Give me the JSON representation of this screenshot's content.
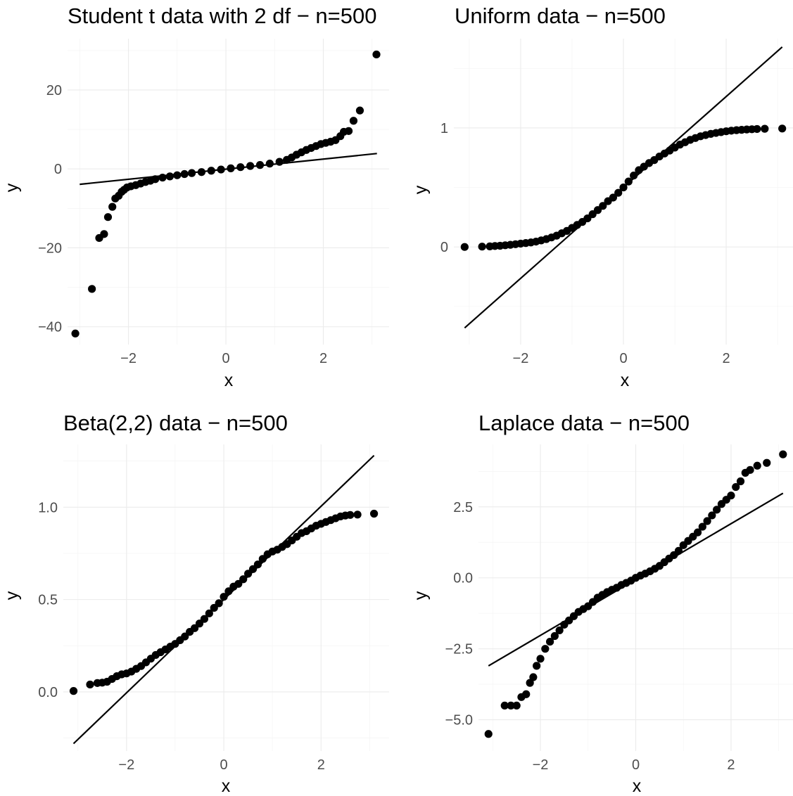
{
  "chart_data": [
    {
      "type": "scatter",
      "title": "Student t data with 2 df − n=500",
      "xlabel": "x",
      "ylabel": "y",
      "xlim": [
        -3.25,
        3.35
      ],
      "ylim": [
        -44.5,
        33
      ],
      "x_ticks": [
        {
          "v": -2,
          "label": "−2"
        },
        {
          "v": 0,
          "label": "0"
        },
        {
          "v": 2,
          "label": "2"
        }
      ],
      "y_ticks": [
        {
          "v": -40,
          "label": "−40"
        },
        {
          "v": -20,
          "label": "−20"
        },
        {
          "v": 0,
          "label": "0"
        },
        {
          "v": 20,
          "label": "20"
        }
      ],
      "reference_line": [
        [
          -3.0,
          -3.9
        ],
        [
          3.1,
          3.9
        ]
      ],
      "points": [
        [
          -3.09,
          -41.7
        ],
        [
          -2.75,
          -30.4
        ],
        [
          -2.6,
          -17.5
        ],
        [
          -2.5,
          -16.5
        ],
        [
          -2.42,
          -12.2
        ],
        [
          -2.33,
          -9.6
        ],
        [
          -2.27,
          -7.5
        ],
        [
          -2.2,
          -6.8
        ],
        [
          -2.14,
          -5.8
        ],
        [
          -2.09,
          -5.3
        ],
        [
          -2.03,
          -4.7
        ],
        [
          -1.95,
          -4.4
        ],
        [
          -1.85,
          -4.1
        ],
        [
          -1.75,
          -3.7
        ],
        [
          -1.65,
          -3.3
        ],
        [
          -1.55,
          -3.0
        ],
        [
          -1.45,
          -2.6
        ],
        [
          -1.3,
          -2.2
        ],
        [
          -1.15,
          -1.9
        ],
        [
          -1.0,
          -1.6
        ],
        [
          -0.85,
          -1.3
        ],
        [
          -0.7,
          -1.05
        ],
        [
          -0.5,
          -0.8
        ],
        [
          -0.3,
          -0.45
        ],
        [
          -0.1,
          -0.15
        ],
        [
          0.1,
          0.15
        ],
        [
          0.3,
          0.45
        ],
        [
          0.5,
          0.75
        ],
        [
          0.7,
          1.0
        ],
        [
          0.9,
          1.35
        ],
        [
          1.1,
          1.8
        ],
        [
          1.25,
          2.3
        ],
        [
          1.35,
          2.9
        ],
        [
          1.45,
          3.6
        ],
        [
          1.55,
          4.2
        ],
        [
          1.65,
          4.8
        ],
        [
          1.75,
          5.3
        ],
        [
          1.85,
          5.8
        ],
        [
          1.95,
          6.3
        ],
        [
          2.05,
          6.6
        ],
        [
          2.15,
          6.9
        ],
        [
          2.25,
          7.3
        ],
        [
          2.35,
          8.3
        ],
        [
          2.42,
          9.4
        ],
        [
          2.52,
          9.6
        ],
        [
          2.62,
          12.2
        ],
        [
          2.75,
          14.8
        ],
        [
          3.09,
          29.0
        ]
      ]
    },
    {
      "type": "scatter",
      "title": "Uniform data − n=500",
      "xlabel": "x",
      "ylabel": "y",
      "xlim": [
        -3.3,
        3.3
      ],
      "ylim": [
        -0.82,
        1.75
      ],
      "x_ticks": [
        {
          "v": -2,
          "label": "−2"
        },
        {
          "v": 0,
          "label": "0"
        },
        {
          "v": 2,
          "label": "2"
        }
      ],
      "y_ticks": [
        {
          "v": 0,
          "label": "0"
        },
        {
          "v": 1,
          "label": "1"
        }
      ],
      "reference_line": [
        [
          -3.09,
          -0.68
        ],
        [
          3.09,
          1.68
        ]
      ],
      "points": [
        [
          -3.09,
          0.0
        ],
        [
          -2.75,
          0.003
        ],
        [
          -2.6,
          0.005
        ],
        [
          -2.5,
          0.008
        ],
        [
          -2.4,
          0.01
        ],
        [
          -2.3,
          0.014
        ],
        [
          -2.2,
          0.018
        ],
        [
          -2.1,
          0.023
        ],
        [
          -2.0,
          0.028
        ],
        [
          -1.9,
          0.033
        ],
        [
          -1.8,
          0.038
        ],
        [
          -1.7,
          0.045
        ],
        [
          -1.6,
          0.055
        ],
        [
          -1.5,
          0.066
        ],
        [
          -1.4,
          0.08
        ],
        [
          -1.3,
          0.095
        ],
        [
          -1.2,
          0.115
        ],
        [
          -1.1,
          0.135
        ],
        [
          -1.0,
          0.16
        ],
        [
          -0.9,
          0.185
        ],
        [
          -0.8,
          0.21
        ],
        [
          -0.7,
          0.24
        ],
        [
          -0.6,
          0.275
        ],
        [
          -0.5,
          0.31
        ],
        [
          -0.4,
          0.345
        ],
        [
          -0.3,
          0.385
        ],
        [
          -0.2,
          0.415
        ],
        [
          -0.1,
          0.455
        ],
        [
          0.0,
          0.5
        ],
        [
          0.1,
          0.55
        ],
        [
          0.2,
          0.6
        ],
        [
          0.3,
          0.645
        ],
        [
          0.4,
          0.675
        ],
        [
          0.5,
          0.705
        ],
        [
          0.6,
          0.73
        ],
        [
          0.7,
          0.76
        ],
        [
          0.8,
          0.785
        ],
        [
          0.9,
          0.81
        ],
        [
          1.0,
          0.835
        ],
        [
          1.1,
          0.86
        ],
        [
          1.2,
          0.88
        ],
        [
          1.3,
          0.9
        ],
        [
          1.4,
          0.915
        ],
        [
          1.5,
          0.93
        ],
        [
          1.6,
          0.94
        ],
        [
          1.7,
          0.95
        ],
        [
          1.8,
          0.958
        ],
        [
          1.9,
          0.965
        ],
        [
          2.0,
          0.972
        ],
        [
          2.1,
          0.977
        ],
        [
          2.2,
          0.981
        ],
        [
          2.3,
          0.984
        ],
        [
          2.4,
          0.987
        ],
        [
          2.5,
          0.989
        ],
        [
          2.6,
          0.991
        ],
        [
          2.75,
          0.993
        ],
        [
          3.09,
          0.995
        ]
      ]
    },
    {
      "type": "scatter",
      "title": "Beta(2,2) data − n=500",
      "xlabel": "x",
      "ylabel": "y",
      "xlim": [
        -3.3,
        3.4
      ],
      "ylim": [
        -0.32,
        1.34
      ],
      "x_ticks": [
        {
          "v": -2,
          "label": "−2"
        },
        {
          "v": 0,
          "label": "0"
        },
        {
          "v": 2,
          "label": "2"
        }
      ],
      "y_ticks": [
        {
          "v": 0,
          "label": "0.0"
        },
        {
          "v": 0.5,
          "label": "0.5"
        },
        {
          "v": 1,
          "label": "1.0"
        }
      ],
      "reference_line": [
        [
          -3.09,
          -0.28
        ],
        [
          3.09,
          1.28
        ]
      ],
      "points": [
        [
          -3.09,
          0.005
        ],
        [
          -2.75,
          0.04
        ],
        [
          -2.6,
          0.048
        ],
        [
          -2.5,
          0.05
        ],
        [
          -2.4,
          0.055
        ],
        [
          -2.3,
          0.07
        ],
        [
          -2.2,
          0.085
        ],
        [
          -2.1,
          0.095
        ],
        [
          -2.0,
          0.1
        ],
        [
          -1.9,
          0.11
        ],
        [
          -1.8,
          0.125
        ],
        [
          -1.7,
          0.14
        ],
        [
          -1.6,
          0.16
        ],
        [
          -1.5,
          0.18
        ],
        [
          -1.4,
          0.2
        ],
        [
          -1.3,
          0.215
        ],
        [
          -1.2,
          0.23
        ],
        [
          -1.1,
          0.245
        ],
        [
          -1.0,
          0.26
        ],
        [
          -0.9,
          0.28
        ],
        [
          -0.8,
          0.3
        ],
        [
          -0.7,
          0.325
        ],
        [
          -0.6,
          0.345
        ],
        [
          -0.5,
          0.37
        ],
        [
          -0.4,
          0.395
        ],
        [
          -0.3,
          0.425
        ],
        [
          -0.2,
          0.455
        ],
        [
          -0.1,
          0.48
        ],
        [
          0.0,
          0.515
        ],
        [
          0.1,
          0.545
        ],
        [
          0.2,
          0.57
        ],
        [
          0.3,
          0.585
        ],
        [
          0.4,
          0.61
        ],
        [
          0.5,
          0.64
        ],
        [
          0.6,
          0.665
        ],
        [
          0.7,
          0.69
        ],
        [
          0.8,
          0.72
        ],
        [
          0.9,
          0.745
        ],
        [
          1.0,
          0.76
        ],
        [
          1.1,
          0.77
        ],
        [
          1.2,
          0.785
        ],
        [
          1.3,
          0.8
        ],
        [
          1.4,
          0.82
        ],
        [
          1.5,
          0.84
        ],
        [
          1.6,
          0.86
        ],
        [
          1.7,
          0.87
        ],
        [
          1.8,
          0.885
        ],
        [
          1.9,
          0.9
        ],
        [
          2.0,
          0.91
        ],
        [
          2.1,
          0.92
        ],
        [
          2.2,
          0.93
        ],
        [
          2.3,
          0.94
        ],
        [
          2.4,
          0.95
        ],
        [
          2.5,
          0.955
        ],
        [
          2.6,
          0.958
        ],
        [
          2.75,
          0.96
        ],
        [
          3.09,
          0.965
        ]
      ]
    },
    {
      "type": "scatter",
      "title": "Laplace data − n=500",
      "xlabel": "x",
      "ylabel": "y",
      "xlim": [
        -3.3,
        3.3
      ],
      "ylim": [
        -6.1,
        4.7
      ],
      "x_ticks": [
        {
          "v": -2,
          "label": "−2"
        },
        {
          "v": 0,
          "label": "0"
        },
        {
          "v": 2,
          "label": "2"
        }
      ],
      "y_ticks": [
        {
          "v": -5,
          "label": "−5.0"
        },
        {
          "v": -2.5,
          "label": "−2.5"
        },
        {
          "v": 0,
          "label": "0.0"
        },
        {
          "v": 2.5,
          "label": "2.5"
        }
      ],
      "reference_line": [
        [
          -3.09,
          -3.1
        ],
        [
          3.09,
          2.98
        ]
      ],
      "points": [
        [
          -3.09,
          -5.5
        ],
        [
          -2.75,
          -4.5
        ],
        [
          -2.62,
          -4.5
        ],
        [
          -2.5,
          -4.5
        ],
        [
          -2.4,
          -4.2
        ],
        [
          -2.3,
          -4.1
        ],
        [
          -2.22,
          -3.7
        ],
        [
          -2.15,
          -3.5
        ],
        [
          -2.08,
          -3.1
        ],
        [
          -2.0,
          -2.85
        ],
        [
          -1.9,
          -2.5
        ],
        [
          -1.8,
          -2.25
        ],
        [
          -1.7,
          -2.05
        ],
        [
          -1.6,
          -1.85
        ],
        [
          -1.5,
          -1.65
        ],
        [
          -1.4,
          -1.5
        ],
        [
          -1.3,
          -1.35
        ],
        [
          -1.2,
          -1.2
        ],
        [
          -1.1,
          -1.1
        ],
        [
          -1.0,
          -1.0
        ],
        [
          -0.9,
          -0.85
        ],
        [
          -0.8,
          -0.7
        ],
        [
          -0.7,
          -0.6
        ],
        [
          -0.6,
          -0.5
        ],
        [
          -0.5,
          -0.42
        ],
        [
          -0.4,
          -0.35
        ],
        [
          -0.3,
          -0.25
        ],
        [
          -0.2,
          -0.18
        ],
        [
          -0.1,
          -0.1
        ],
        [
          0.0,
          0.0
        ],
        [
          0.1,
          0.08
        ],
        [
          0.2,
          0.15
        ],
        [
          0.3,
          0.23
        ],
        [
          0.4,
          0.32
        ],
        [
          0.5,
          0.42
        ],
        [
          0.6,
          0.55
        ],
        [
          0.7,
          0.68
        ],
        [
          0.8,
          0.8
        ],
        [
          0.9,
          0.95
        ],
        [
          1.0,
          1.15
        ],
        [
          1.1,
          1.3
        ],
        [
          1.2,
          1.45
        ],
        [
          1.3,
          1.6
        ],
        [
          1.4,
          1.8
        ],
        [
          1.5,
          2.0
        ],
        [
          1.6,
          2.2
        ],
        [
          1.7,
          2.4
        ],
        [
          1.8,
          2.6
        ],
        [
          1.9,
          2.75
        ],
        [
          2.0,
          2.9
        ],
        [
          2.1,
          3.2
        ],
        [
          2.2,
          3.4
        ],
        [
          2.3,
          3.7
        ],
        [
          2.4,
          3.8
        ],
        [
          2.55,
          3.95
        ],
        [
          2.75,
          4.05
        ],
        [
          3.09,
          4.35
        ]
      ]
    }
  ]
}
